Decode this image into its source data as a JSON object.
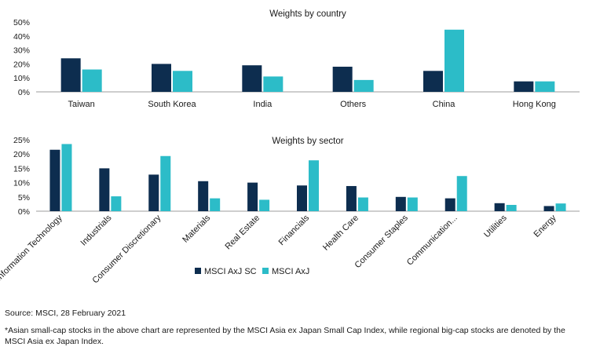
{
  "colors": {
    "series1": "#0d2d4f",
    "series2": "#2cbcc8",
    "axis": "#9e9e9e"
  },
  "legend": [
    "MSCI AxJ SC",
    "MSCI AxJ"
  ],
  "source": "Source: MSCI, 28 February 2021",
  "footnote": "*Asian small-cap stocks in the above chart are represented by the MSCI Asia ex Japan Small Cap Index, while regional big-cap stocks are denoted by the MSCI Asia ex Japan Index.",
  "chart_data": [
    {
      "type": "bar",
      "title": "Weights by country",
      "categories": [
        "Taiwan",
        "South Korea",
        "India",
        "Others",
        "China",
        "Hong Kong"
      ],
      "series": [
        {
          "name": "MSCI AxJ SC",
          "values": [
            24,
            20,
            19,
            18,
            15,
            7.5
          ]
        },
        {
          "name": "MSCI AxJ",
          "values": [
            16,
            15,
            11,
            8.5,
            44.5,
            7.5
          ]
        }
      ],
      "ylim": [
        0,
        50
      ],
      "yticks": [
        "0%",
        "10%",
        "20%",
        "30%",
        "40%",
        "50%"
      ],
      "ytick_values": [
        0,
        10,
        20,
        30,
        40,
        50
      ],
      "xlabel": "",
      "ylabel": "",
      "grid": false
    },
    {
      "type": "bar",
      "title": "Weights by sector",
      "categories": [
        "Information Technology",
        "Industrials",
        "Consumer Discretionary",
        "Materials",
        "Real Estate",
        "Financials",
        "Health Care",
        "Consumer Staples",
        "Communication...",
        "Utilities",
        "Energy"
      ],
      "series": [
        {
          "name": "MSCI AxJ SC",
          "values": [
            21.5,
            15,
            12.8,
            10.5,
            10,
            9,
            8.8,
            5,
            4.5,
            2.8,
            1.8
          ]
        },
        {
          "name": "MSCI AxJ",
          "values": [
            23.5,
            5.2,
            19.3,
            4.5,
            4,
            17.8,
            4.8,
            4.8,
            12.3,
            2.2,
            2.7
          ]
        }
      ],
      "ylim": [
        0,
        25
      ],
      "yticks": [
        "0%",
        "5%",
        "10%",
        "15%",
        "20%",
        "25%"
      ],
      "ytick_values": [
        0,
        5,
        10,
        15,
        20,
        25
      ],
      "xlabel": "",
      "ylabel": "",
      "grid": false,
      "legend_position": "bottom"
    }
  ]
}
